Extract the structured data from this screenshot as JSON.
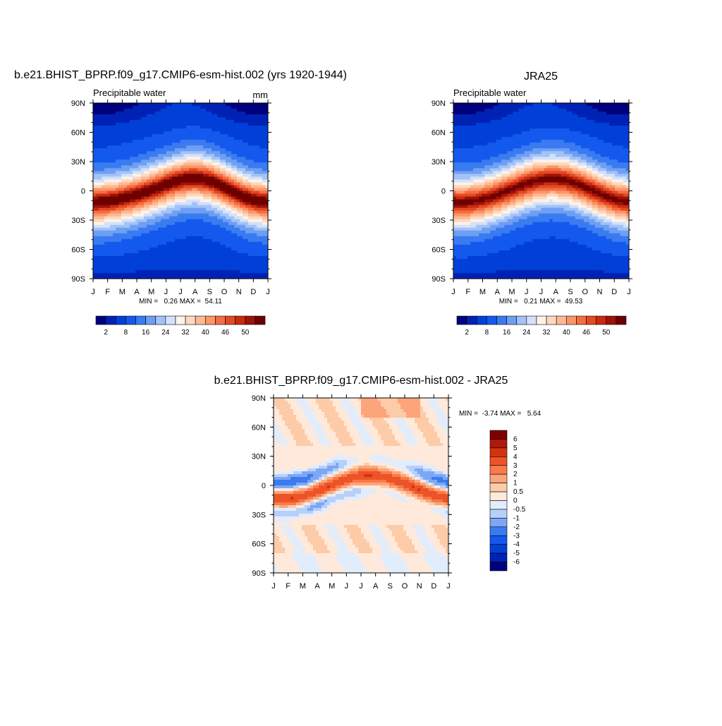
{
  "colors": {
    "main_scale": [
      "#00007f",
      "#0022b4",
      "#0040d8",
      "#1459ee",
      "#3b7bf0",
      "#6e9ff4",
      "#a3c2f7",
      "#d2e2fb",
      "#fff2e6",
      "#fdd8c0",
      "#fcb994",
      "#fb9668",
      "#f46d43",
      "#e34a21",
      "#c92b10",
      "#9e1208",
      "#6e0000"
    ],
    "diff_scale": [
      "#00007f",
      "#0022b4",
      "#0040d8",
      "#1459ee",
      "#3b7bf0",
      "#7da7f5",
      "#b6d0f9",
      "#e2edfc",
      "#ffe9da",
      "#fdcba8",
      "#fca57a",
      "#f97a4b",
      "#ec5428",
      "#d43312",
      "#b01a08",
      "#7d0000"
    ]
  },
  "plots": {
    "model": {
      "title": "b.e21.BHIST_BPRP.f09_g17.CMIP6-esm-hist.002 (yrs 1920-1944)",
      "left_label": "Precipitable water",
      "right_label": "mm",
      "minmax": "MIN =   0.26 MAX =  54.11"
    },
    "obs": {
      "title": "JRA25",
      "left_label": "Precipitable water",
      "minmax": "MIN =   0.21 MAX =  49.53"
    },
    "diff": {
      "title": "b.e21.BHIST_BPRP.f09_g17.CMIP6-esm-hist.002 - JRA25",
      "minmax": "MIN =  -3.74 MAX =   5.64"
    }
  },
  "axes": {
    "x_ticks": [
      "J",
      "F",
      "M",
      "A",
      "M",
      "J",
      "J",
      "A",
      "S",
      "O",
      "N",
      "D",
      "J"
    ],
    "y_ticks": [
      "90N",
      "60N",
      "30N",
      "0",
      "30S",
      "60S",
      "90S"
    ]
  },
  "colorbars": {
    "main_labels": [
      "2",
      "8",
      "16",
      "24",
      "32",
      "40",
      "46",
      "50"
    ],
    "diff_labels": [
      "6",
      "5",
      "4",
      "3",
      "2",
      "1",
      "0.5",
      "0",
      "-0.5",
      "-1",
      "-2",
      "-3",
      "-4",
      "-5",
      "-6"
    ]
  },
  "chart_data": [
    {
      "type": "heatmap",
      "title": "b.e21.BHIST_BPRP.f09_g17.CMIP6-esm-hist.002 (yrs 1920-1944)",
      "subtitle_left": "Precipitable water",
      "units": "mm",
      "x": [
        "J",
        "F",
        "M",
        "A",
        "M",
        "J",
        "J",
        "A",
        "S",
        "O",
        "N",
        "D",
        "J"
      ],
      "y": [
        "90N",
        "60N",
        "30N",
        "0",
        "30S",
        "60S",
        "90S"
      ],
      "levels": [
        2,
        8,
        16,
        24,
        32,
        40,
        46,
        50
      ],
      "min": 0.26,
      "max": 54.11,
      "field": "zonal-mean precipitable water by month and latitude; tropical maximum ~50-54 mm near the equator, moving north in JJA; minimum ~1-2 mm at the poles"
    },
    {
      "type": "heatmap",
      "title": "JRA25",
      "subtitle_left": "Precipitable water",
      "x": [
        "J",
        "F",
        "M",
        "A",
        "M",
        "J",
        "J",
        "A",
        "S",
        "O",
        "N",
        "D",
        "J"
      ],
      "y": [
        "90N",
        "60N",
        "30N",
        "0",
        "30S",
        "60S",
        "90S"
      ],
      "levels": [
        2,
        8,
        16,
        24,
        32,
        40,
        46,
        50
      ],
      "min": 0.21,
      "max": 49.53
    },
    {
      "type": "heatmap",
      "title": "b.e21.BHIST_BPRP.f09_g17.CMIP6-esm-hist.002 - JRA25",
      "x": [
        "J",
        "F",
        "M",
        "A",
        "M",
        "J",
        "J",
        "A",
        "S",
        "O",
        "N",
        "D",
        "J"
      ],
      "y": [
        "90N",
        "60N",
        "30N",
        "0",
        "30S",
        "60S",
        "90S"
      ],
      "levels": [
        -6,
        -5,
        -4,
        -3,
        -2,
        -1,
        -0.5,
        0,
        0.5,
        1,
        2,
        3,
        4,
        5,
        6
      ],
      "min": -3.74,
      "max": 5.64
    }
  ]
}
